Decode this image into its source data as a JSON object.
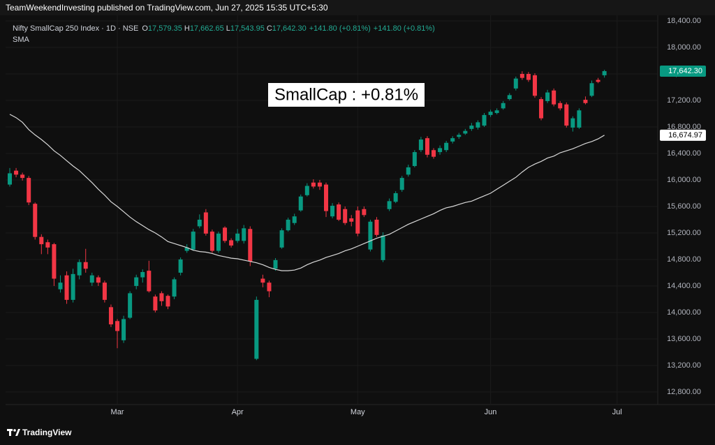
{
  "header": {
    "text": "TeamWeekendInvesting published on TradingView.com, Jun 27, 2025 15:35 UTC+5:30"
  },
  "footer": {
    "brand": "TradingView"
  },
  "chart_data": {
    "type": "candlestick",
    "legend": {
      "ohlc": [
        {
          "key": "O",
          "label": "17,579.35"
        },
        {
          "key": "H",
          "label": "17,662.65"
        },
        {
          "key": "L",
          "label": "17,543.95"
        },
        {
          "key": "C",
          "label": "17,642.30"
        }
      ],
      "change": "+141.80 (+0.81%)"
    },
    "annotations": [
      "SmallCap : +0.81%"
    ],
    "categories": [
      null,
      null,
      null,
      null,
      null,
      null,
      null,
      null,
      null,
      null,
      null,
      null,
      null,
      null,
      null,
      null,
      null,
      "Mar",
      null,
      null,
      null,
      null,
      null,
      null,
      null,
      null,
      null,
      null,
      null,
      null,
      null,
      null,
      null,
      null,
      null,
      null,
      "Apr",
      null,
      null,
      null,
      null,
      null,
      null,
      null,
      null,
      null,
      null,
      null,
      null,
      null,
      null,
      null,
      null,
      null,
      null,
      "May",
      null,
      null,
      null,
      null,
      null,
      null,
      null,
      null,
      null,
      null,
      null,
      null,
      null,
      null,
      null,
      null,
      null,
      null,
      null,
      null,
      "Jun",
      null,
      null,
      null,
      null,
      null,
      null,
      null,
      null,
      null,
      null,
      null,
      null,
      null,
      null,
      null,
      null,
      null,
      null,
      null,
      "Jul"
    ],
    "series": [
      {
        "name": "Nifty SmallCap 250 Index · 1D · NSE",
        "type": "candlestick",
        "up_color": "#089981",
        "down_color": "#f23645",
        "open": [
          15930,
          16140,
          16080,
          16030,
          15640,
          15140,
          15060,
          15030,
          14350,
          14560,
          14190,
          14560,
          14760,
          14450,
          14530,
          14450,
          14080,
          13870,
          13580,
          13920,
          14400,
          14530,
          14630,
          14240,
          14290,
          14250,
          14240,
          14600,
          14930,
          14950,
          15300,
          15510,
          15220,
          14930,
          15280,
          15090,
          15080,
          15080,
          15260,
          13300,
          14510,
          14450,
          14660,
          14980,
          15240,
          15350,
          15540,
          15770,
          15960,
          15960,
          15930,
          15450,
          15630,
          15560,
          15420,
          15540,
          15560,
          14950,
          15400,
          14790,
          15560,
          15670,
          15850,
          16080,
          16210,
          16450,
          16630,
          16450,
          16420,
          16450,
          16580,
          16650,
          16700,
          16770,
          16790,
          16820,
          16980,
          17010,
          17080,
          17220,
          17380,
          17600,
          17600,
          17580,
          17220,
          17190,
          17350,
          17160,
          17140,
          16790,
          16790,
          17210,
          17270,
          17510,
          17579.35,
          null,
          null
        ],
        "high": [
          16180,
          16180,
          16110,
          16060,
          15660,
          15180,
          15100,
          15050,
          14560,
          14620,
          14660,
          14800,
          14960,
          14600,
          14560,
          14480,
          14120,
          13900,
          13950,
          14320,
          14570,
          14650,
          14780,
          14270,
          14320,
          14270,
          14530,
          14830,
          15030,
          15260,
          15480,
          15560,
          15250,
          15220,
          15300,
          15120,
          15260,
          15320,
          15300,
          14240,
          14570,
          14480,
          14820,
          15270,
          15430,
          15490,
          15780,
          15950,
          16010,
          16000,
          15960,
          15650,
          15660,
          15600,
          15470,
          15600,
          15600,
          15400,
          15440,
          15210,
          15720,
          15830,
          16060,
          16230,
          16450,
          16650,
          16660,
          16480,
          16520,
          16590,
          16660,
          16710,
          16770,
          16860,
          16900,
          17010,
          17060,
          17080,
          17190,
          17310,
          17560,
          17640,
          17630,
          17610,
          17250,
          17360,
          17380,
          17190,
          17170,
          16960,
          17080,
          17260,
          17500,
          17540,
          17662.65,
          null,
          null
        ],
        "low": [
          15900,
          16040,
          15990,
          15620,
          15100,
          14880,
          14880,
          14400,
          14300,
          14130,
          14150,
          14500,
          14600,
          14400,
          14400,
          14150,
          13780,
          13460,
          13540,
          13900,
          14350,
          14450,
          14300,
          14000,
          14100,
          14050,
          14200,
          14560,
          14900,
          14930,
          15270,
          15160,
          14900,
          14900,
          15050,
          14980,
          15050,
          15040,
          14700,
          13280,
          14380,
          14230,
          14630,
          14960,
          15220,
          15320,
          15520,
          15750,
          15870,
          15850,
          15440,
          15420,
          15380,
          15320,
          15300,
          15150,
          15440,
          14920,
          15140,
          14760,
          15530,
          15650,
          15820,
          16050,
          16190,
          16420,
          16340,
          16320,
          16380,
          16420,
          16550,
          16620,
          16680,
          16740,
          16760,
          16800,
          16950,
          16990,
          17060,
          17200,
          17350,
          17510,
          17480,
          17240,
          16900,
          17160,
          17110,
          17050,
          16790,
          16730,
          16770,
          17140,
          17250,
          17460,
          17543.95,
          null,
          null
        ],
        "close": [
          16100,
          16080,
          16030,
          15660,
          15140,
          15030,
          14980,
          14510,
          14450,
          14190,
          14580,
          14760,
          14660,
          14560,
          14450,
          14190,
          13820,
          13720,
          13900,
          14290,
          14530,
          14610,
          14320,
          14030,
          14170,
          14090,
          14500,
          14800,
          14980,
          15220,
          15400,
          15190,
          14930,
          15190,
          15080,
          15010,
          15190,
          15270,
          14770,
          14190,
          14450,
          14320,
          14790,
          15240,
          15400,
          15450,
          15750,
          15910,
          15900,
          15900,
          15530,
          15610,
          15400,
          15350,
          15370,
          15190,
          15470,
          15370,
          15170,
          15160,
          15680,
          15800,
          16030,
          16190,
          16420,
          16610,
          16380,
          16350,
          16480,
          16560,
          16630,
          16680,
          16740,
          16820,
          16870,
          16980,
          17030,
          17050,
          17160,
          17280,
          17530,
          17540,
          17510,
          17270,
          16930,
          17320,
          17140,
          17080,
          16820,
          16930,
          17050,
          17160,
          17460,
          17480,
          17642.3,
          null,
          null
        ]
      },
      {
        "name": "SMA",
        "type": "line",
        "color": "#d9d9d9",
        "values": [
          16990,
          16940,
          16870,
          16760,
          16680,
          16610,
          16530,
          16440,
          16370,
          16290,
          16210,
          16140,
          16050,
          15960,
          15860,
          15770,
          15670,
          15600,
          15520,
          15440,
          15370,
          15310,
          15250,
          15200,
          15140,
          15070,
          15040,
          15010,
          14980,
          14940,
          14920,
          14910,
          14890,
          14860,
          14840,
          14820,
          14810,
          14790,
          14770,
          14750,
          14720,
          14680,
          14650,
          14630,
          14630,
          14640,
          14670,
          14720,
          14760,
          14790,
          14830,
          14860,
          14890,
          14930,
          14960,
          15000,
          15040,
          15080,
          15120,
          15150,
          15180,
          15230,
          15280,
          15330,
          15370,
          15410,
          15450,
          15490,
          15540,
          15580,
          15600,
          15630,
          15660,
          15680,
          15720,
          15760,
          15800,
          15860,
          15920,
          15980,
          16040,
          16120,
          16190,
          16240,
          16280,
          16330,
          16360,
          16410,
          16440,
          16470,
          16510,
          16550,
          16580,
          16620,
          16674.97,
          null,
          null
        ],
        "value_labels": [
          null,
          null,
          null,
          null,
          null,
          null,
          null,
          null,
          null,
          null,
          null,
          null,
          null,
          null,
          null,
          null,
          null,
          null,
          null,
          null,
          null,
          null,
          null,
          null,
          null,
          null,
          null,
          null,
          null,
          null,
          null,
          null,
          null,
          null,
          null,
          null,
          null,
          null,
          null,
          null,
          null,
          null,
          null,
          null,
          null,
          null,
          null,
          null,
          null,
          null,
          null,
          null,
          null,
          null,
          null,
          null,
          null,
          null,
          null,
          null,
          null,
          null,
          null,
          null,
          null,
          null,
          null,
          null,
          null,
          null,
          null,
          null,
          null,
          null,
          null,
          null,
          null,
          null,
          null,
          null,
          null,
          null,
          null,
          null,
          null,
          null,
          null,
          null,
          null,
          null,
          null,
          null,
          null,
          null,
          "16,674.97",
          null,
          null
        ]
      }
    ],
    "ylim": [
      12610,
      18484
    ],
    "yticks": [
      {
        "value": 12800,
        "label": "12,800.00"
      },
      {
        "value": 13200,
        "label": "13,200.00"
      },
      {
        "value": 13600,
        "label": "13,600.00"
      },
      {
        "value": 14000,
        "label": "14,000.00"
      },
      {
        "value": 14400,
        "label": "14,400.00"
      },
      {
        "value": 14800,
        "label": "14,800.00"
      },
      {
        "value": 15200,
        "label": "15,200.00"
      },
      {
        "value": 15600,
        "label": "15,600.00"
      },
      {
        "value": 16000,
        "label": "16,000.00"
      },
      {
        "value": 16400,
        "label": "16,400.00"
      },
      {
        "value": 16800,
        "label": "16,800.00"
      },
      {
        "value": 17200,
        "label": "17,200.00"
      },
      {
        "value": 17600,
        "label": "17,600.00"
      },
      {
        "value": 18000,
        "label": "18,000.00"
      },
      {
        "value": 18400,
        "label": "18,400.00"
      }
    ],
    "grid": true
  }
}
